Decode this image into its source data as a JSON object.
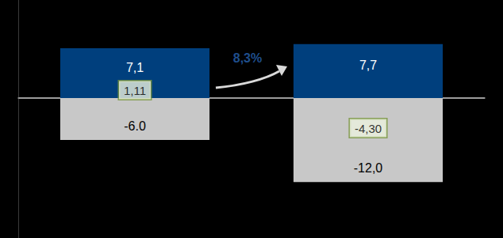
{
  "chart_data": {
    "type": "bar",
    "categories": [
      null,
      null
    ],
    "series": [
      {
        "type": "bar",
        "color": "#003f7d",
        "values": [
          7.1,
          7.7
        ],
        "value_labels": [
          "7,1",
          "7,7"
        ]
      },
      {
        "type": "bar",
        "color": "#c8c8c8",
        "values": [
          -6.0,
          -12.0
        ],
        "value_labels": [
          "-6.0",
          "-12,0"
        ]
      },
      {
        "type": "scatter",
        "color": "#ebf1de",
        "values": [
          1.11,
          -4.3
        ],
        "value_labels": [
          "1,11",
          "-4,30"
        ]
      }
    ],
    "annotation": "8,3%",
    "ylim": [
      -20,
      14
    ],
    "yticks": [
      0
    ],
    "grid": true,
    "stacked": true,
    "data_labels": true,
    "tick_labels": false
  }
}
